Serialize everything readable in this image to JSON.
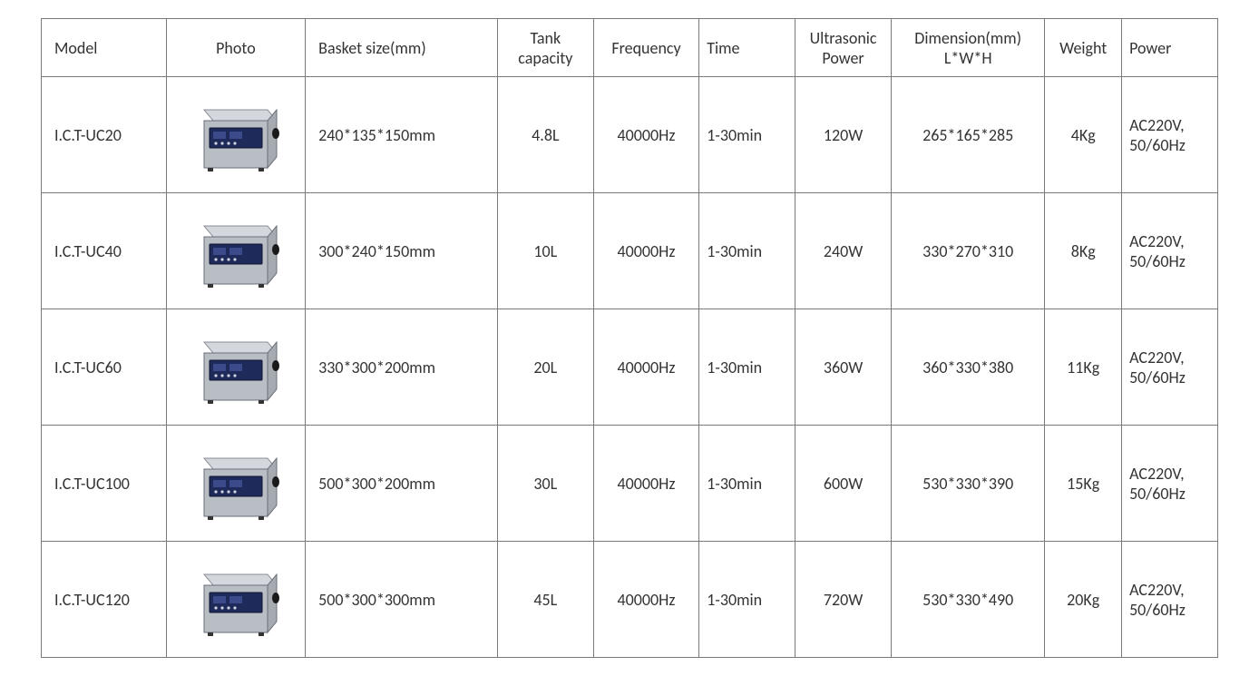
{
  "table": {
    "headers": {
      "model": "Model",
      "photo": "Photo",
      "basket": "Basket size(mm)",
      "tank": "Tank capacity",
      "freq": "Frequency",
      "time": "Time",
      "ultra": "Ultrasonic Power",
      "dim": "Dimension(mm) L*W*H",
      "weight": "Weight",
      "power": "Power"
    },
    "rows": [
      {
        "model": "I.C.T-UC20",
        "basket": "240*135*150mm",
        "tank": "4.8L",
        "freq": "40000Hz",
        "time": "1-30min",
        "ultra": "120W",
        "dim": "265*165*285",
        "weight": "4Kg",
        "power": "AC220V, 50/60Hz"
      },
      {
        "model": "I.C.T-UC40",
        "basket": "300*240*150mm",
        "tank": "10L",
        "freq": "40000Hz",
        "time": "1-30min",
        "ultra": "240W",
        "dim": "330*270*310",
        "weight": "8Kg",
        "power": "AC220V, 50/60Hz"
      },
      {
        "model": "I.C.T-UC60",
        "basket": "330*300*200mm",
        "tank": "20L",
        "freq": "40000Hz",
        "time": "1-30min",
        "ultra": "360W",
        "dim": "360*330*380",
        "weight": "11Kg",
        "power": "AC220V, 50/60Hz"
      },
      {
        "model": "I.C.T-UC100",
        "basket": "500*300*200mm",
        "tank": "30L",
        "freq": "40000Hz",
        "time": "1-30min",
        "ultra": "600W",
        "dim": "530*330*390",
        "weight": "15Kg",
        "power": "AC220V, 50/60Hz"
      },
      {
        "model": "I.C.T-UC120",
        "basket": "500*300*300mm",
        "tank": "45L",
        "freq": "40000Hz",
        "time": "1-30min",
        "ultra": "720W",
        "dim": "530*330*490",
        "weight": "20Kg",
        "power": "AC220V, 50/60Hz"
      }
    ],
    "photo_style": {
      "body_fill": "#b9bec5",
      "body_stroke": "#6a6f76",
      "panel_fill": "#1e2a5a",
      "panel_stroke": "#0d1530",
      "lid_fill": "#d4d8de",
      "lid_stroke": "#8a8f96",
      "handle_fill": "#1a1a1a"
    }
  },
  "style": {
    "border_color": "#7a7a7a",
    "text_color": "#333333",
    "background": "#ffffff",
    "font_family": "Calibri, Arial, sans-serif",
    "base_fontsize": 18
  }
}
